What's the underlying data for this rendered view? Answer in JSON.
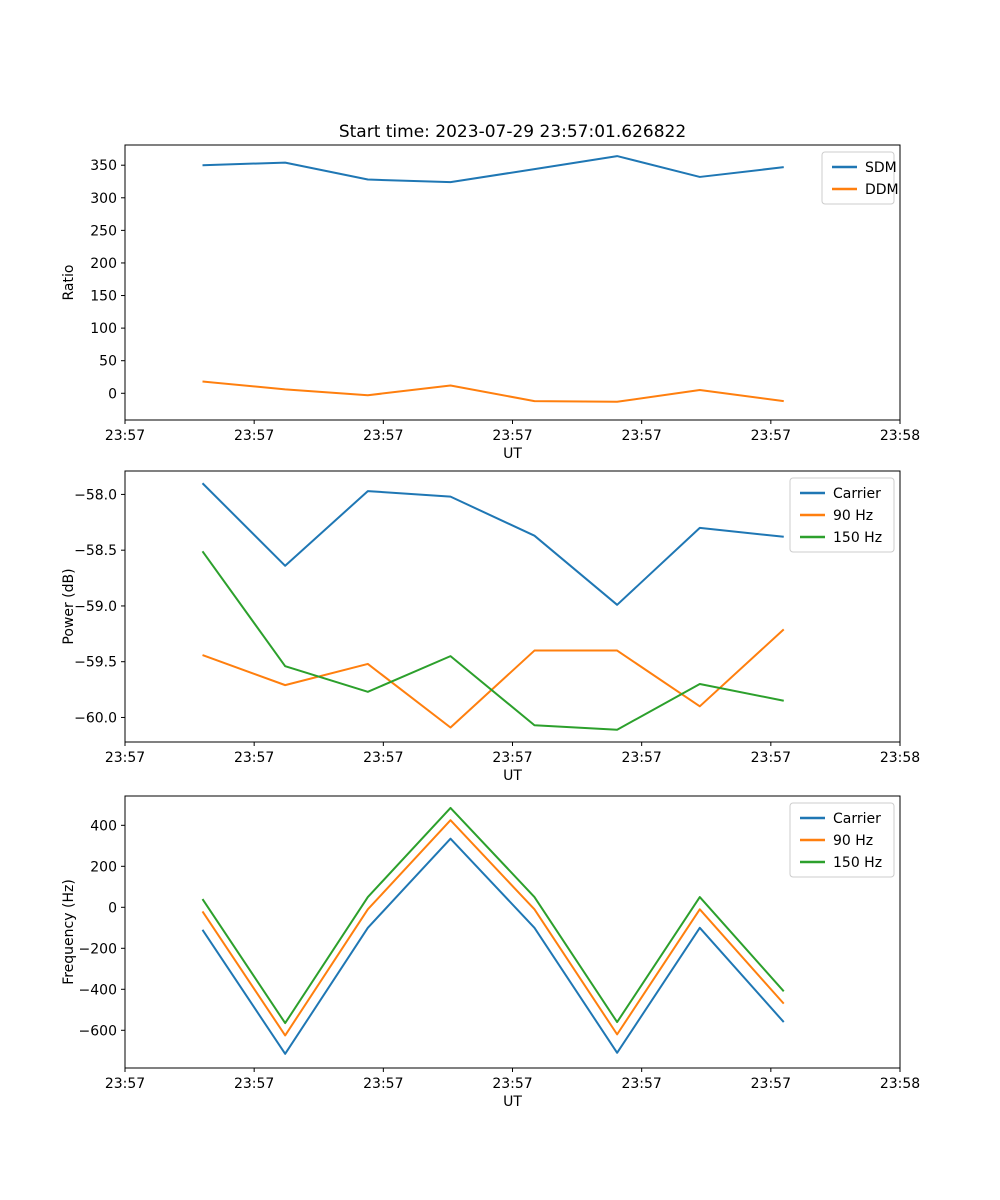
{
  "figure": {
    "title": "Start time: 2023-07-29 23:57:01.626822",
    "background": "#ffffff"
  },
  "colors": {
    "blue": "#1f77b4",
    "orange": "#ff7f0e",
    "green": "#2ca02c"
  },
  "chart_data": [
    {
      "type": "line",
      "title": "Start time: 2023-07-29 23:57:01.626822",
      "xlabel": "UT",
      "ylabel": "Ratio",
      "grid": false,
      "legend_position": "upper right",
      "x": [
        6,
        12.4,
        18.8,
        25.2,
        31.7,
        38.1,
        44.5,
        51
      ],
      "xlim": [
        0,
        60
      ],
      "xtick_values": [
        0,
        10,
        20,
        30,
        40,
        50,
        60
      ],
      "xtick_labels": [
        "23:57",
        "23:57",
        "23:57",
        "23:57",
        "23:57",
        "23:57",
        "23:58"
      ],
      "ylim": [
        -41,
        381
      ],
      "ytick_values": [
        0,
        50,
        100,
        150,
        200,
        250,
        300,
        350
      ],
      "ytick_labels": [
        "0",
        "50",
        "100",
        "150",
        "200",
        "250",
        "300",
        "350"
      ],
      "series": [
        {
          "name": "SDM",
          "color": "#1f77b4",
          "values": [
            350,
            354,
            328,
            324,
            344,
            364,
            332,
            347
          ]
        },
        {
          "name": "DDM",
          "color": "#ff7f0e",
          "values": [
            18,
            6,
            -3,
            12,
            -12,
            -13,
            5,
            -12
          ]
        }
      ]
    },
    {
      "type": "line",
      "xlabel": "UT",
      "ylabel": "Power (dB)",
      "grid": false,
      "legend_position": "upper right",
      "x": [
        6,
        12.4,
        18.8,
        25.2,
        31.7,
        38.1,
        44.5,
        51
      ],
      "xlim": [
        0,
        60
      ],
      "xtick_values": [
        0,
        10,
        20,
        30,
        40,
        50,
        60
      ],
      "xtick_labels": [
        "23:57",
        "23:57",
        "23:57",
        "23:57",
        "23:57",
        "23:57",
        "23:58"
      ],
      "ylim": [
        -60.22,
        -57.79
      ],
      "ytick_values": [
        -58.0,
        -58.5,
        -59.0,
        -59.5,
        -60.0
      ],
      "ytick_labels": [
        "−58.0",
        "−58.5",
        "−59.0",
        "−59.5",
        "−60.0"
      ],
      "series": [
        {
          "name": "Carrier",
          "color": "#1f77b4",
          "values": [
            -57.9,
            -58.64,
            -57.97,
            -58.02,
            -58.37,
            -58.99,
            -58.3,
            -58.38
          ]
        },
        {
          "name": "90 Hz",
          "color": "#ff7f0e",
          "values": [
            -59.44,
            -59.71,
            -59.52,
            -60.09,
            -59.4,
            -59.4,
            -59.9,
            -59.21
          ]
        },
        {
          "name": "150 Hz",
          "color": "#2ca02c",
          "values": [
            -58.51,
            -59.54,
            -59.77,
            -59.45,
            -60.07,
            -60.11,
            -59.7,
            -59.85
          ]
        }
      ]
    },
    {
      "type": "line",
      "xlabel": "UT",
      "ylabel": "Frequency (Hz)",
      "grid": false,
      "legend_position": "upper right",
      "x": [
        6,
        12.4,
        18.8,
        25.2,
        31.7,
        38.1,
        44.5,
        51
      ],
      "xlim": [
        0,
        60
      ],
      "xtick_values": [
        0,
        10,
        20,
        30,
        40,
        50,
        60
      ],
      "xtick_labels": [
        "23:57",
        "23:57",
        "23:57",
        "23:57",
        "23:57",
        "23:57",
        "23:58"
      ],
      "ylim": [
        -784,
        543
      ],
      "ytick_values": [
        400,
        200,
        0,
        -200,
        -400,
        -600
      ],
      "ytick_labels": [
        "400",
        "200",
        "0",
        "−200",
        "−400",
        "−600"
      ],
      "series": [
        {
          "name": "Carrier",
          "color": "#1f77b4",
          "values": [
            -110,
            -715,
            -100,
            335,
            -100,
            -710,
            -100,
            -560
          ]
        },
        {
          "name": "90 Hz",
          "color": "#ff7f0e",
          "values": [
            -20,
            -625,
            -10,
            425,
            -10,
            -620,
            -10,
            -470
          ]
        },
        {
          "name": "150 Hz",
          "color": "#2ca02c",
          "values": [
            40,
            -565,
            50,
            485,
            50,
            -560,
            50,
            -410
          ]
        }
      ]
    }
  ]
}
